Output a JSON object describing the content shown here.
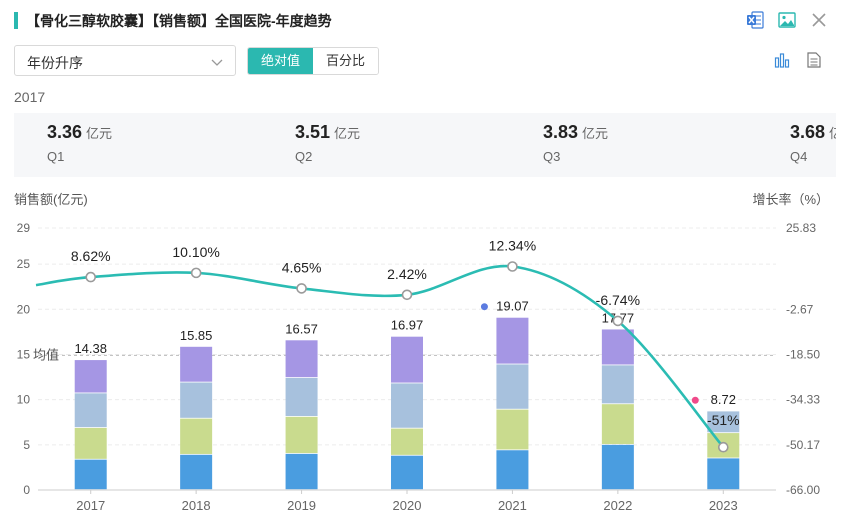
{
  "header": {
    "title": "【骨化三醇软胶囊】【销售额】全国医院-年度趋势",
    "icons": [
      "excel-icon",
      "image-icon",
      "close-icon"
    ]
  },
  "controls": {
    "sort_select": "年份升序",
    "seg_absolute": "绝对值",
    "seg_percent": "百分比",
    "chart_icons": [
      "bar-chart-icon",
      "document-icon"
    ]
  },
  "summary": {
    "year": "2017",
    "quarters": [
      {
        "value": "3.36",
        "unit": "亿元",
        "name": "Q1"
      },
      {
        "value": "3.51",
        "unit": "亿元",
        "name": "Q2"
      },
      {
        "value": "3.83",
        "unit": "亿元",
        "name": "Q3"
      },
      {
        "value": "3.68",
        "unit": "亿元",
        "name": "Q4"
      }
    ]
  },
  "chart_data": {
    "type": "bar",
    "categories": [
      "2017",
      "2018",
      "2019",
      "2020",
      "2021",
      "2022",
      "2023"
    ],
    "ylabel_left": "销售额(亿元)",
    "ylabel_right": "增长率（%）",
    "yticks_left": [
      "0",
      "5",
      "10",
      "15",
      "20",
      "25",
      "29"
    ],
    "ylim_left": [
      0,
      29
    ],
    "yticks_right": [
      "-66.00",
      "-50.17",
      "-34.33",
      "-18.50",
      "-2.67",
      "25.83"
    ],
    "ylim_right": [
      -66.0,
      25.83
    ],
    "stack_colors": [
      "#4a9de0",
      "#c9db8e",
      "#a7c1dd",
      "#a596e4"
    ],
    "stacks": [
      [
        3.36,
        3.51,
        3.83,
        3.68
      ],
      [
        3.9,
        4.0,
        4.0,
        3.95
      ],
      [
        4.0,
        4.1,
        4.3,
        4.17
      ],
      [
        3.8,
        3.0,
        5.0,
        5.17
      ],
      [
        4.4,
        4.5,
        5.0,
        5.17
      ],
      [
        5.0,
        4.5,
        4.3,
        3.97
      ],
      [
        3.5,
        2.8,
        2.4,
        0.02
      ]
    ],
    "totals": [
      14.38,
      15.85,
      16.57,
      16.97,
      19.07,
      17.77,
      8.72
    ],
    "growth": {
      "values": [
        8.62,
        10.1,
        4.65,
        2.42,
        12.34,
        -6.74,
        -51.0
      ],
      "labels": [
        "8.62%",
        "10.10%",
        "4.65%",
        "2.42%",
        "12.34%",
        "-6.74%",
        "-51%"
      ],
      "color": "#2bbcb3"
    },
    "average": {
      "label": "均值",
      "value": 14.9
    },
    "markers": [
      {
        "category": "2021",
        "color": "#5b7be0"
      },
      {
        "category": "2023",
        "color": "#f04a8a"
      }
    ]
  }
}
